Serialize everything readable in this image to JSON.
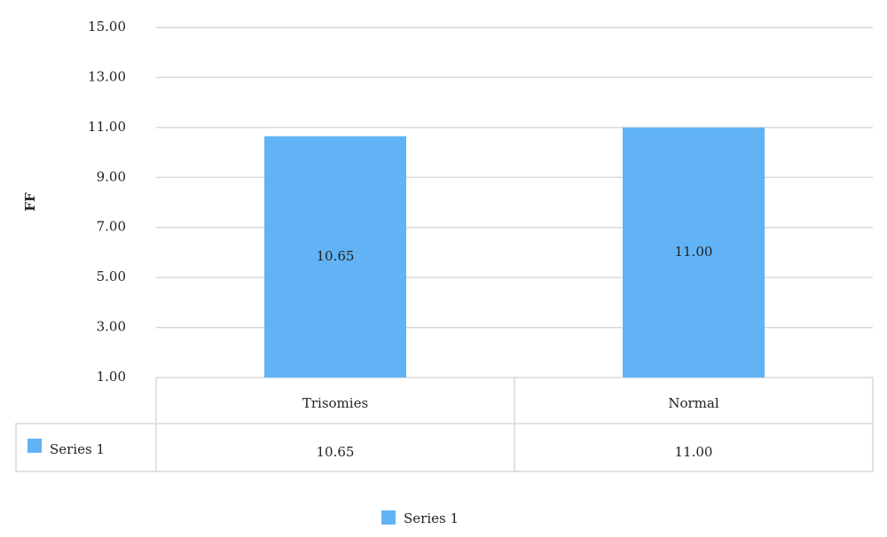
{
  "chart_data": {
    "type": "bar",
    "y_label": "FF",
    "categories": [
      "Trisomies",
      "Normal"
    ],
    "series": [
      {
        "name": "Series 1",
        "color": "#62b3f5",
        "values": [
          10.65,
          11
        ],
        "value_labels": [
          "10.65",
          "11.00"
        ]
      }
    ],
    "ylim": [
      1,
      15
    ],
    "yticks": [
      {
        "value": 1,
        "label": "1.00"
      },
      {
        "value": 3,
        "label": "3.00"
      },
      {
        "value": 5,
        "label": "5.00"
      },
      {
        "value": 7,
        "label": "7.00"
      },
      {
        "value": 9,
        "label": "9.00"
      },
      {
        "value": 11,
        "label": "11.00"
      },
      {
        "value": 13,
        "label": "13.00"
      },
      {
        "value": 15,
        "label": "15.00"
      }
    ],
    "grid": true,
    "data_table": true
  }
}
